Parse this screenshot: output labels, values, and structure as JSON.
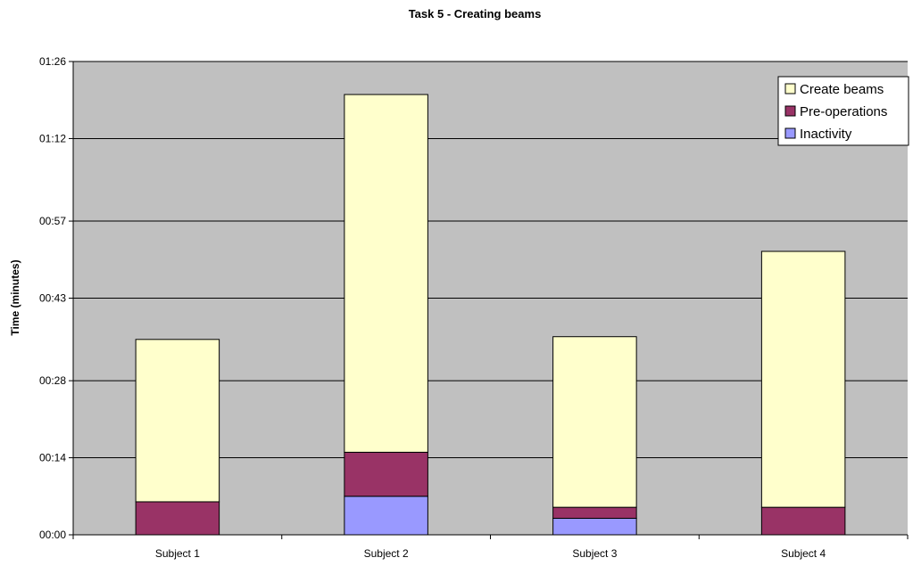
{
  "chart_data": {
    "type": "bar",
    "stacked": true,
    "title": "Task 5 - Creating beams",
    "xlabel": "",
    "ylabel": "Time (minutes)",
    "ylim": [
      0,
      86
    ],
    "y_ticks": [
      0,
      14,
      28,
      43,
      57,
      72,
      86
    ],
    "y_tick_labels": [
      "00:00",
      "00:14",
      "00:28",
      "00:43",
      "00:57",
      "01:12",
      "01:26"
    ],
    "categories": [
      "Subject 1",
      "Subject 2",
      "Subject 3",
      "Subject 4"
    ],
    "series": [
      {
        "name": "Inactivity",
        "values": [
          0,
          7,
          3,
          0
        ],
        "color": "#9999ff"
      },
      {
        "name": "Pre-operations",
        "values": [
          6,
          8,
          2,
          5
        ],
        "color": "#993366"
      },
      {
        "name": "Create beams",
        "values": [
          29.5,
          65,
          31,
          46.5
        ],
        "color": "#ffffcc"
      }
    ],
    "legend_order": [
      "Create beams",
      "Pre-operations",
      "Inactivity"
    ],
    "legend_position": "top-right",
    "grid": true,
    "plot_background": "#c0c0c0"
  }
}
